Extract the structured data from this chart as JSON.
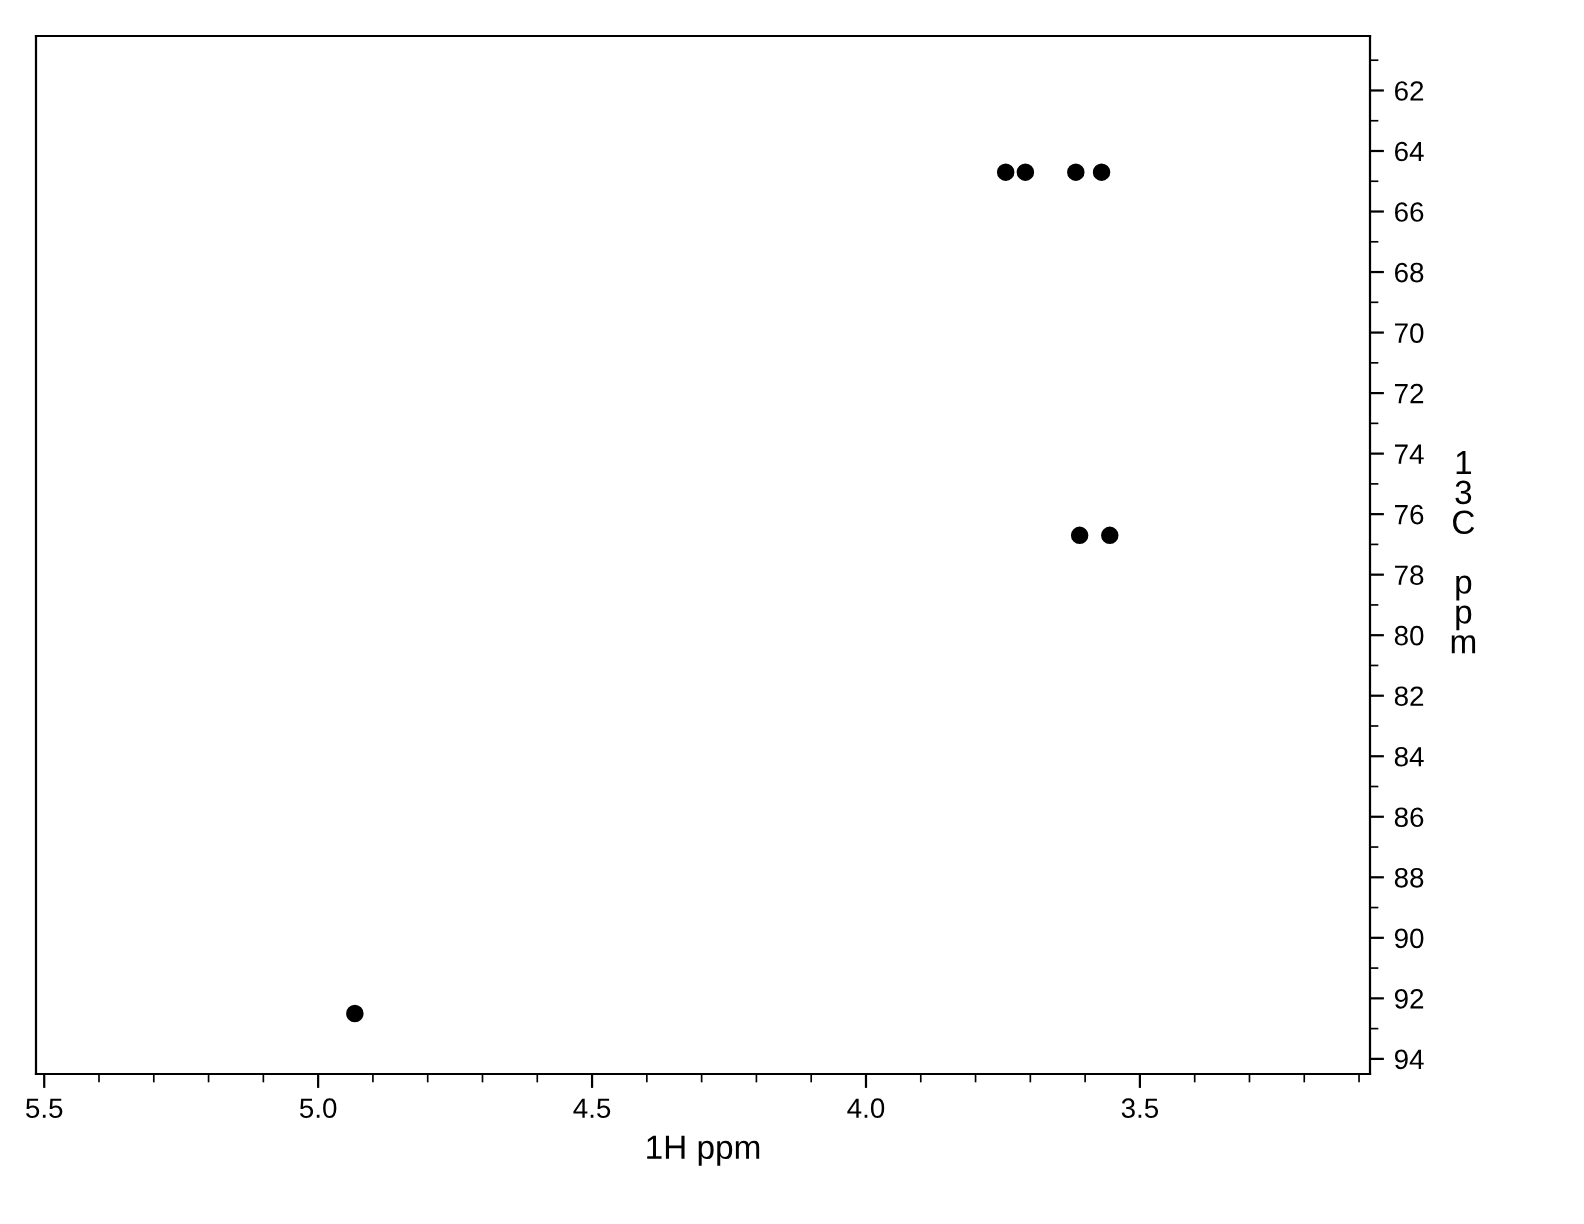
{
  "chart_data": {
    "type": "scatter",
    "xlabel": "1H ppm",
    "ylabel": "13C ppm",
    "x": [
      3.745,
      3.709,
      3.617,
      3.57,
      3.61,
      3.555,
      4.933
    ],
    "values": [
      64.7,
      64.7,
      64.7,
      64.7,
      76.7,
      76.7,
      92.5
    ],
    "color": "#000000",
    "marker": "circle",
    "xlim": [
      5.515,
      3.08
    ],
    "ylim": [
      94.5,
      60.2
    ],
    "xticks": [
      {
        "value": 5.5,
        "label": "5.5"
      },
      {
        "value": 5.0,
        "label": "5.0"
      },
      {
        "value": 4.5,
        "label": "4.5"
      },
      {
        "value": 4.0,
        "label": "4.0"
      },
      {
        "value": 3.5,
        "label": "3.5"
      }
    ],
    "yticks": [
      62,
      64,
      66,
      68,
      70,
      72,
      74,
      76,
      78,
      80,
      82,
      84,
      86,
      88,
      90,
      92,
      94
    ],
    "grid": false,
    "legend": false
  }
}
